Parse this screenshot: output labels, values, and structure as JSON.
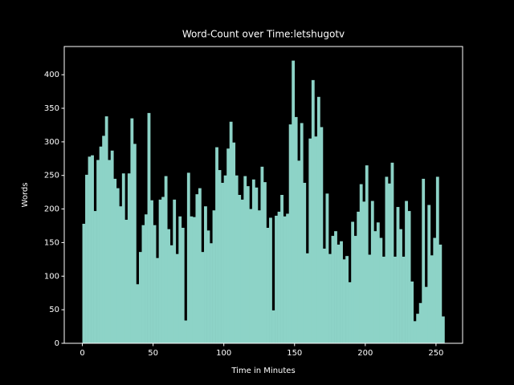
{
  "chart_data": {
    "type": "histogram",
    "title": "Word-Count over Time:letshugotv",
    "x_label": "Time in Minutes",
    "y_label": "Words",
    "color": "#8dd3c7",
    "bins": [
      0,
      2,
      4,
      6,
      8,
      10,
      12,
      14,
      16,
      18,
      20,
      22,
      24,
      26,
      28,
      30,
      32,
      34,
      36,
      38,
      40,
      42,
      44,
      46,
      48,
      50,
      52,
      54,
      56,
      58,
      60,
      62,
      64,
      66,
      68,
      70,
      72,
      74,
      76,
      78,
      80,
      82,
      84,
      86,
      88,
      90,
      92,
      94,
      96,
      98,
      100,
      102,
      104,
      106,
      108,
      110,
      112,
      114,
      116,
      118,
      120,
      122,
      124,
      126,
      128,
      130,
      132,
      134,
      136,
      138,
      140,
      142,
      144,
      146,
      148,
      150,
      152,
      154,
      156,
      158,
      160,
      162,
      164,
      166,
      168,
      170,
      172,
      174,
      176,
      178,
      180,
      182,
      184,
      186,
      188,
      190,
      192,
      194,
      196,
      198,
      200,
      202,
      204,
      206,
      208,
      210,
      212,
      214,
      216,
      218,
      220,
      222,
      224,
      226,
      228,
      230,
      232,
      234,
      236,
      238,
      240,
      242,
      244,
      246,
      248,
      250,
      252,
      254,
      256
    ],
    "values": [
      178,
      251,
      278,
      280,
      197,
      273,
      293,
      309,
      338,
      273,
      287,
      245,
      231,
      204,
      253,
      184,
      253,
      335,
      297,
      88,
      136,
      176,
      192,
      343,
      213,
      176,
      127,
      214,
      218,
      249,
      170,
      146,
      214,
      133,
      189,
      172,
      34,
      254,
      189,
      188,
      222,
      231,
      136,
      204,
      168,
      149,
      198,
      292,
      258,
      239,
      250,
      290,
      330,
      299,
      250,
      221,
      214,
      249,
      234,
      200,
      244,
      232,
      198,
      263,
      240,
      172,
      187,
      49,
      190,
      196,
      221,
      189,
      193,
      326,
      421,
      337,
      272,
      328,
      239,
      134,
      305,
      392,
      308,
      367,
      322,
      141,
      223,
      133,
      160,
      167,
      147,
      152,
      125,
      130,
      91,
      181,
      160,
      196,
      237,
      211,
      265,
      132,
      212,
      167,
      180,
      157,
      129,
      248,
      238,
      269,
      129,
      203,
      170,
      129,
      212,
      197,
      92,
      33,
      44,
      60,
      245,
      84,
      206,
      131,
      157,
      248,
      147,
      40
    ],
    "xlim": [
      -12.8,
      268.8
    ],
    "ylim": [
      0,
      442
    ],
    "xticks": [
      0,
      50,
      100,
      150,
      200,
      250
    ],
    "yticks": [
      0,
      50,
      100,
      150,
      200,
      250,
      300,
      350,
      400
    ]
  }
}
